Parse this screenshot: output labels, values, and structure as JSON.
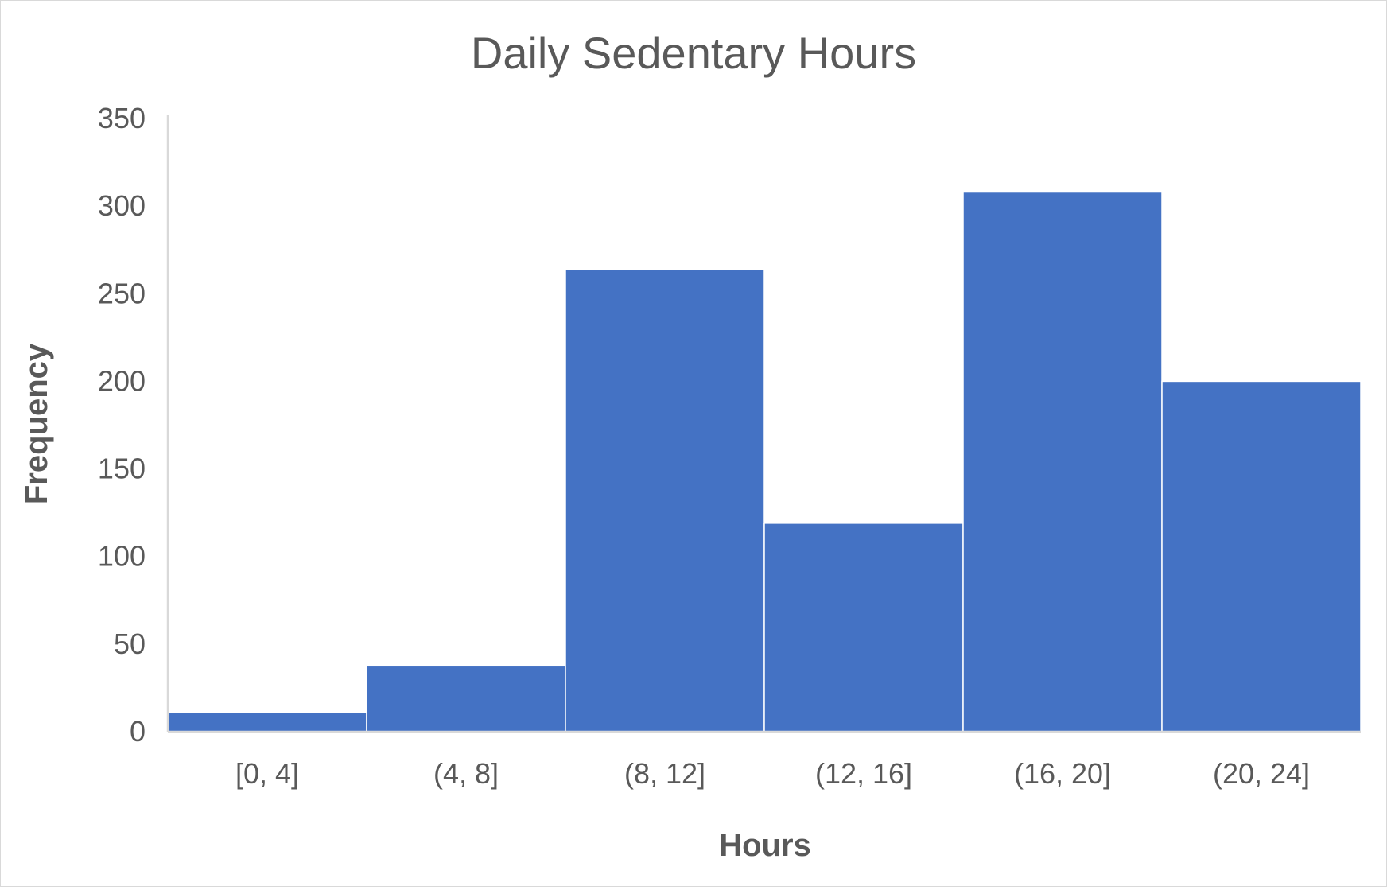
{
  "chart_data": {
    "type": "bar",
    "title": "Daily Sedentary Hours",
    "xlabel": "Hours",
    "ylabel": "Frequency",
    "categories": [
      "[0, 4]",
      "(4, 8]",
      "(8, 12]",
      "(12, 16]",
      "(16, 20]",
      "(20, 24]"
    ],
    "values": [
      11,
      38,
      264,
      119,
      308,
      200
    ],
    "ylim": [
      0,
      350
    ],
    "yticks": [
      "0",
      "50",
      "100",
      "150",
      "200",
      "250",
      "300",
      "350"
    ],
    "grid": false,
    "legend": "none",
    "bar_color": "#4472C4",
    "bar_edge_color": "#ffffff",
    "axis_color": "#d9d9d9",
    "text_color": "#595959"
  }
}
